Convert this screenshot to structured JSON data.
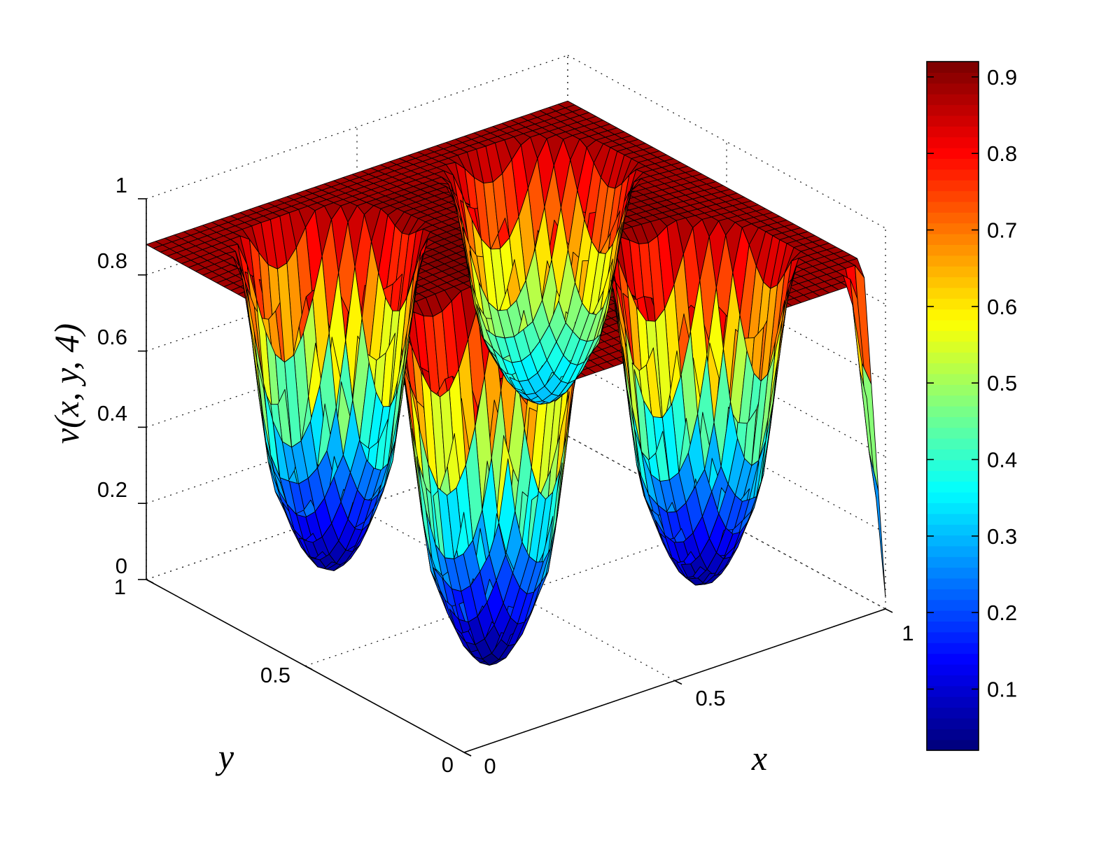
{
  "chart_data": {
    "type": "surface",
    "zlabel": "v(x, y, 4)",
    "xlabel": "x",
    "ylabel": "y",
    "xlim": [
      0,
      1
    ],
    "ylim": [
      0,
      1
    ],
    "zlim": [
      0,
      1
    ],
    "x_ticks": [
      "0",
      "0.5",
      "1"
    ],
    "y_ticks": [
      "0",
      "0.5",
      "1"
    ],
    "z_ticks": [
      "0",
      "0.2",
      "0.4",
      "0.6",
      "0.8",
      "1"
    ],
    "grid": true,
    "colormap": "jet",
    "colorbar": {
      "range": [
        0.02,
        0.92
      ],
      "ticks": [
        "0.1",
        "0.2",
        "0.3",
        "0.4",
        "0.5",
        "0.6",
        "0.7",
        "0.8",
        "0.9"
      ],
      "tick_values": [
        0.1,
        0.2,
        0.3,
        0.4,
        0.5,
        0.6,
        0.7,
        0.8,
        0.9
      ]
    },
    "surface": {
      "plateau_value": 0.9,
      "grid_points": 45,
      "wells": [
        {
          "x": 0.25,
          "y": 0.25,
          "min_value": 0.03
        },
        {
          "x": 0.75,
          "y": 0.25,
          "min_value": 0.05
        },
        {
          "x": 0.25,
          "y": 0.75,
          "min_value": 0.05
        },
        {
          "x": 0.75,
          "y": 0.75,
          "min_value": 0.3
        }
      ],
      "corner_values": {
        "x0_y0": 0.9,
        "x1_y0": 0.05,
        "x0_y1": 0.9,
        "x1_y1": 0.9
      }
    }
  }
}
